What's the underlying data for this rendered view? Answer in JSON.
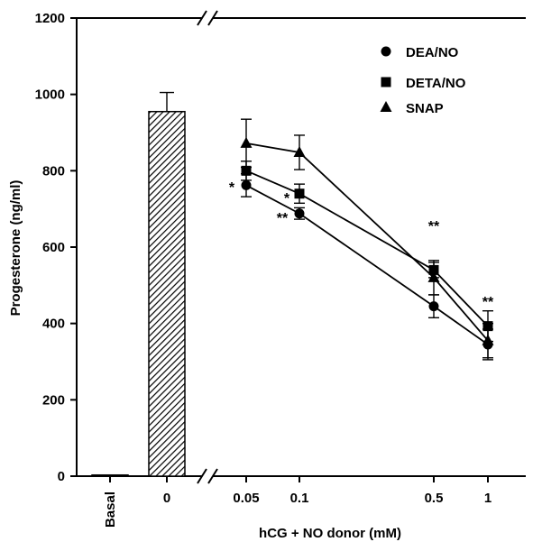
{
  "chart_data": {
    "type": "line",
    "xlabel": "hCG + NO donor (mM)",
    "ylabel": "Progesterone (ng/ml)",
    "ylim": [
      0,
      1200
    ],
    "y_ticks": [
      "0",
      "200",
      "400",
      "600",
      "800",
      "1000",
      "1200"
    ],
    "x_axis_break": true,
    "legend_position": "top-right",
    "bars": [
      {
        "category": "Basal",
        "value": 3,
        "error": 0,
        "pattern": "none"
      },
      {
        "category": "0",
        "value": 955,
        "error": 50,
        "pattern": "hatched"
      }
    ],
    "x": [
      "0.05",
      "0.1",
      "0.5",
      "1"
    ],
    "series": [
      {
        "name": "DEA/NO",
        "marker": "circle",
        "values": [
          762,
          688,
          445,
          345
        ],
        "errors": [
          30,
          15,
          30,
          40
        ]
      },
      {
        "name": "DETA/NO",
        "marker": "square",
        "values": [
          800,
          740,
          540,
          393
        ],
        "errors": [
          25,
          25,
          20,
          40
        ]
      },
      {
        "name": "SNAP",
        "marker": "triangle",
        "values": [
          872,
          848,
          520,
          355
        ],
        "errors": [
          63,
          45,
          45,
          45
        ]
      }
    ],
    "annotations": [
      {
        "x": "0.05",
        "text": "*"
      },
      {
        "x": "0.1",
        "text": "*"
      },
      {
        "x": "0.1",
        "text": "**"
      },
      {
        "x": "0.5",
        "text": "**"
      },
      {
        "x": "1",
        "text": "**"
      }
    ]
  }
}
